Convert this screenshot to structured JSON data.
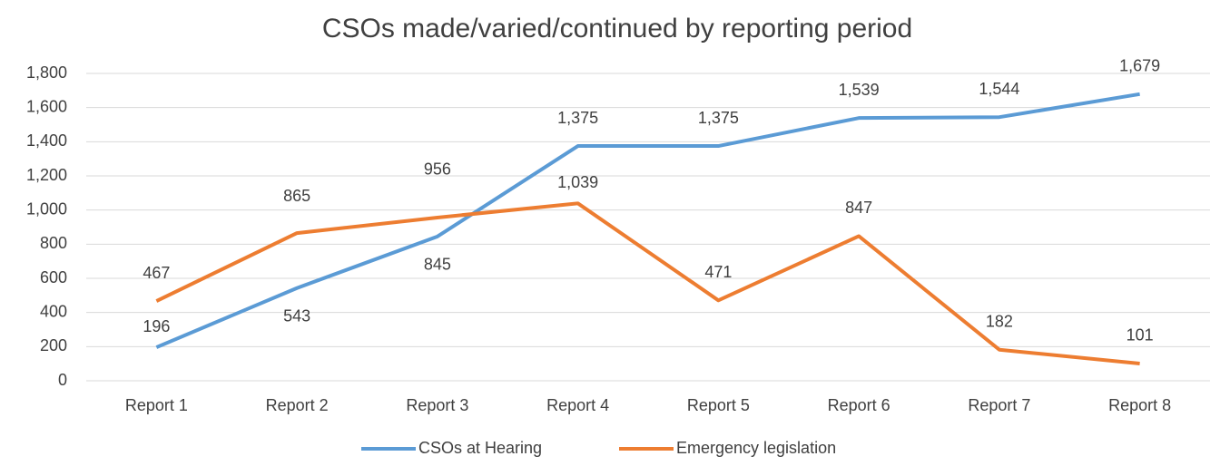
{
  "chart_data": {
    "type": "line",
    "title": "CSOs made/varied/continued by reporting period",
    "categories": [
      "Report 1",
      "Report 2",
      "Report 3",
      "Report 4",
      "Report 5",
      "Report 6",
      "Report 7",
      "Report 8"
    ],
    "series": [
      {
        "name": "CSOs at Hearing",
        "color": "#5b9bd5",
        "values": [
          196,
          543,
          845,
          1375,
          1375,
          1539,
          1544,
          1679
        ],
        "value_labels": [
          "196",
          "543",
          "845",
          "1,375",
          "1,375",
          "1,539",
          "1,544",
          "1,679"
        ]
      },
      {
        "name": "Emergency legislation",
        "color": "#ed7d31",
        "values": [
          467,
          865,
          956,
          1039,
          471,
          847,
          182,
          101
        ],
        "value_labels": [
          "467",
          "865",
          "956",
          "1,039",
          "471",
          "847",
          "182",
          "101"
        ]
      }
    ],
    "ylim": [
      0,
      1800
    ],
    "yticks": [
      0,
      200,
      400,
      600,
      800,
      {
        "value": 1000,
        "label": "1,000"
      },
      {
        "value": 1200,
        "label": "1,200"
      },
      {
        "value": 1400,
        "label": "1,400"
      },
      {
        "value": 1600,
        "label": "1,600"
      },
      {
        "value": 1800,
        "label": "1,800"
      }
    ],
    "grid": true,
    "legend": "bottom"
  }
}
